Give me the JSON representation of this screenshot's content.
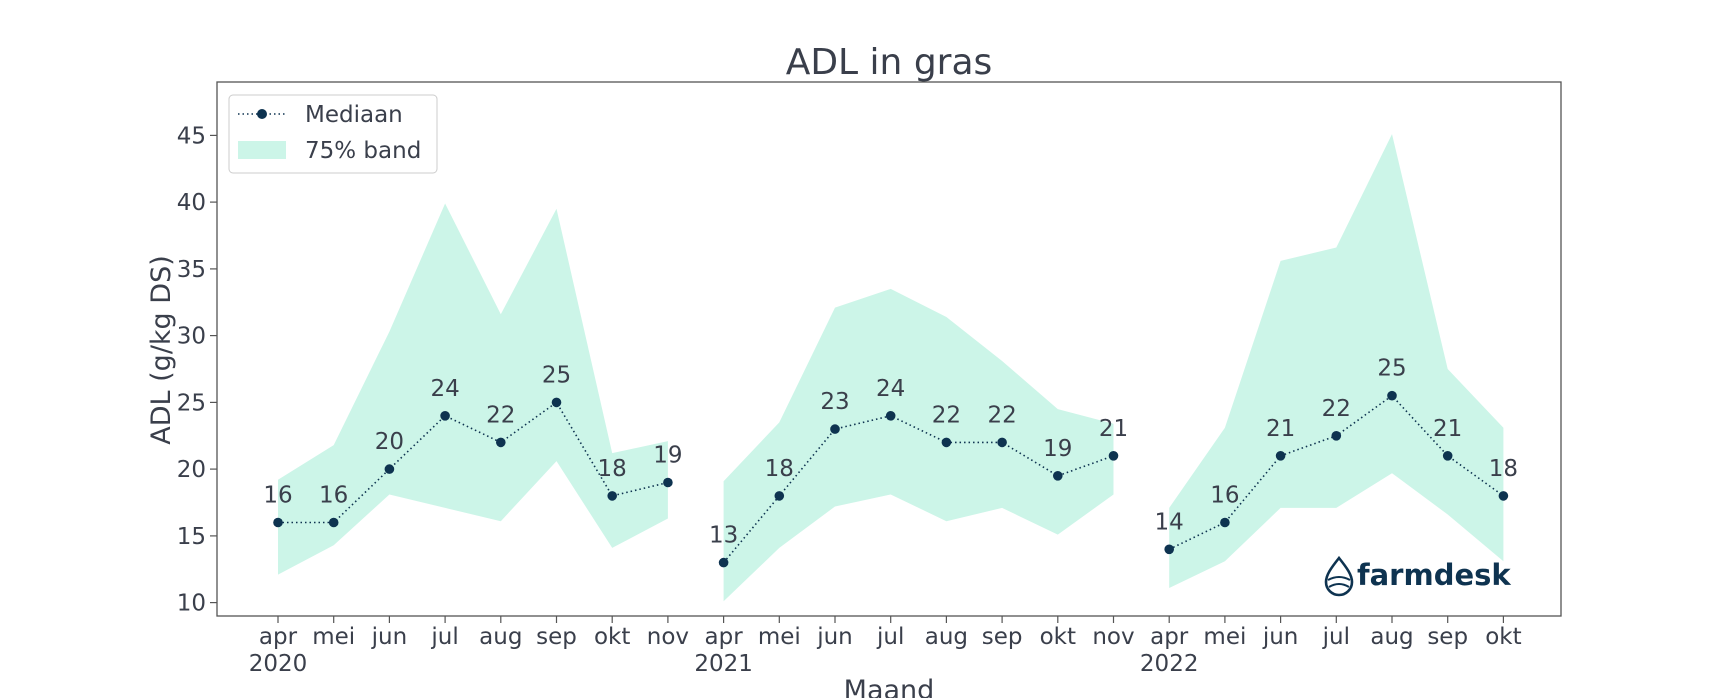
{
  "colors": {
    "band": "#ccf5e8",
    "line": "#0e3350",
    "text": "#3a3f4b",
    "frame": "#555555"
  },
  "logo": {
    "text": "farmdesk"
  },
  "chart_data": {
    "type": "line",
    "title": "ADL in gras",
    "xlabel": "Maand",
    "ylabel": "ADL (g/kg DS)",
    "ylim": [
      9,
      49
    ],
    "yticks": [
      10,
      15,
      20,
      25,
      30,
      35,
      40,
      45
    ],
    "legend": {
      "position": "top-left",
      "median_label": "Mediaan",
      "band_label": "75% band"
    },
    "xticks": [
      "apr",
      "mei",
      "jun",
      "jul",
      "aug",
      "sep",
      "okt",
      "nov",
      "apr",
      "mei",
      "jun",
      "jul",
      "aug",
      "sep",
      "okt",
      "nov",
      "apr",
      "mei",
      "jun",
      "jul",
      "aug",
      "sep",
      "okt"
    ],
    "year_labels": [
      {
        "label": "2020",
        "index": 0
      },
      {
        "label": "2021",
        "index": 8
      },
      {
        "label": "2022",
        "index": 16
      }
    ],
    "series": [
      {
        "name": "2020",
        "start_index": 0,
        "median": [
          16,
          16,
          20,
          24,
          22,
          25,
          18,
          19
        ],
        "labels": [
          "16",
          "16",
          "20",
          "24",
          "22",
          "25",
          "18",
          "19"
        ],
        "upper": [
          19.2,
          21.8,
          30.3,
          39.9,
          31.6,
          39.5,
          21.2,
          22.1
        ],
        "lower": [
          12.1,
          14.3,
          18.1,
          17.1,
          16.1,
          20.6,
          14.1,
          16.3
        ]
      },
      {
        "name": "2021",
        "start_index": 8,
        "median": [
          13,
          18,
          23,
          24,
          22,
          22,
          19.5,
          21
        ],
        "labels": [
          "13",
          "18",
          "23",
          "24",
          "22",
          "22",
          "19",
          "21"
        ],
        "upper": [
          19.1,
          23.5,
          32.1,
          33.5,
          31.4,
          28.1,
          24.5,
          23.4
        ],
        "lower": [
          10.1,
          14.1,
          17.2,
          18.1,
          16.1,
          17.1,
          15.1,
          18.1
        ]
      },
      {
        "name": "2022",
        "start_index": 16,
        "median": [
          14,
          16,
          21,
          22.5,
          25.5,
          21,
          18
        ],
        "labels": [
          "14",
          "16",
          "21",
          "22",
          "25",
          "21",
          "18"
        ],
        "upper": [
          17.1,
          23.1,
          35.6,
          36.6,
          45.1,
          27.5,
          23.1
        ],
        "lower": [
          11.1,
          13.1,
          17.1,
          17.1,
          19.7,
          16.6,
          13.1
        ]
      }
    ]
  }
}
